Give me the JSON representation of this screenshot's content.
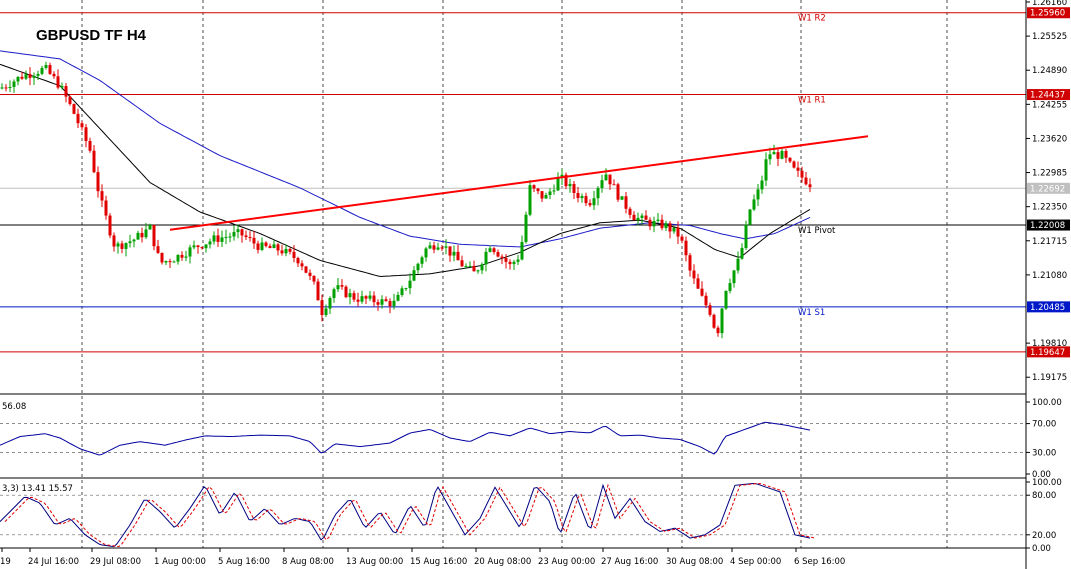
{
  "chart_data": {
    "type": "candlestick",
    "title": "GBPUSD  TF H4",
    "ylim": [
      1.189,
      1.2616
    ],
    "price_ticks": [
      "1.26160",
      "1.25525",
      "1.24890",
      "1.24255",
      "1.23620",
      "1.22985",
      "1.22350",
      "1.21715",
      "1.21080",
      "1.19810",
      "1.19175"
    ],
    "levels": [
      {
        "name": "W1 R2",
        "value": 1.2596,
        "label": "1.25960",
        "color": "#d00000"
      },
      {
        "name": "W1 R1",
        "value": 1.24437,
        "label": "1.24437",
        "color": "#d00000"
      },
      {
        "name": "W1 Pivot",
        "value": 1.22008,
        "label": "1.22008",
        "color": "#000000"
      },
      {
        "name": "W1 S1",
        "value": 1.20485,
        "label": "1.20485",
        "color": "#0018c8"
      },
      {
        "name": "",
        "value": 1.19647,
        "label": "1.19647",
        "color": "#d00000"
      }
    ],
    "current_price": {
      "value": 1.22692,
      "label": "1.22692"
    },
    "time_labels": [
      "19",
      "24 Jul 16:00",
      "29 Jul 08:00",
      "1 Aug 00:00",
      "5 Aug 16:00",
      "8 Aug 08:00",
      "13 Aug 00:00",
      "15 Aug 16:00",
      "20 Aug 08:00",
      "23 Aug 00:00",
      "27 Aug 16:00",
      "30 Aug 08:00",
      "4 Sep 00:00",
      "6 Sep 16:00"
    ],
    "trendline": {
      "from": [
        170,
        1.2192
      ],
      "to": [
        868,
        1.2366
      ],
      "color": "#ff0000"
    },
    "close_keypoints": [
      [
        0,
        1.2455
      ],
      [
        22,
        1.2478
      ],
      [
        45,
        1.2492
      ],
      [
        60,
        1.246
      ],
      [
        75,
        1.2405
      ],
      [
        90,
        1.234
      ],
      [
        100,
        1.225
      ],
      [
        115,
        1.216
      ],
      [
        135,
        1.2175
      ],
      [
        150,
        1.2195
      ],
      [
        160,
        1.213
      ],
      [
        175,
        1.214
      ],
      [
        195,
        1.216
      ],
      [
        215,
        1.2175
      ],
      [
        240,
        1.2185
      ],
      [
        260,
        1.216
      ],
      [
        280,
        1.2155
      ],
      [
        300,
        1.2135
      ],
      [
        315,
        1.2085
      ],
      [
        322,
        1.204
      ],
      [
        335,
        1.2085
      ],
      [
        355,
        1.2065
      ],
      [
        375,
        1.206
      ],
      [
        395,
        1.2055
      ],
      [
        410,
        1.21
      ],
      [
        425,
        1.2155
      ],
      [
        440,
        1.217
      ],
      [
        460,
        1.213
      ],
      [
        475,
        1.211
      ],
      [
        490,
        1.2165
      ],
      [
        510,
        1.2125
      ],
      [
        520,
        1.2145
      ],
      [
        530,
        1.227
      ],
      [
        545,
        1.225
      ],
      [
        560,
        1.229
      ],
      [
        575,
        1.226
      ],
      [
        590,
        1.2245
      ],
      [
        605,
        1.23
      ],
      [
        620,
        1.225
      ],
      [
        635,
        1.2215
      ],
      [
        650,
        1.2205
      ],
      [
        665,
        1.22
      ],
      [
        680,
        1.218
      ],
      [
        690,
        1.2115
      ],
      [
        700,
        1.207
      ],
      [
        710,
        1.204
      ],
      [
        717,
        1.1995
      ],
      [
        725,
        1.208
      ],
      [
        740,
        1.214
      ],
      [
        750,
        1.223
      ],
      [
        760,
        1.227
      ],
      [
        768,
        1.2335
      ],
      [
        782,
        1.233
      ],
      [
        795,
        1.23
      ],
      [
        812,
        1.2275
      ]
    ],
    "ma_black_keypoints": [
      [
        0,
        1.25
      ],
      [
        60,
        1.246
      ],
      [
        100,
        1.238
      ],
      [
        150,
        1.228
      ],
      [
        200,
        1.2225
      ],
      [
        260,
        1.2185
      ],
      [
        320,
        1.2135
      ],
      [
        380,
        1.2105
      ],
      [
        430,
        1.211
      ],
      [
        480,
        1.2125
      ],
      [
        520,
        1.215
      ],
      [
        560,
        1.2185
      ],
      [
        600,
        1.2205
      ],
      [
        640,
        1.221
      ],
      [
        680,
        1.2195
      ],
      [
        715,
        1.2155
      ],
      [
        740,
        1.214
      ],
      [
        770,
        1.2185
      ],
      [
        810,
        1.223
      ]
    ],
    "ma_blue_keypoints": [
      [
        0,
        1.2525
      ],
      [
        60,
        1.251
      ],
      [
        100,
        1.247
      ],
      [
        160,
        1.239
      ],
      [
        220,
        1.233
      ],
      [
        300,
        1.227
      ],
      [
        360,
        1.2215
      ],
      [
        410,
        1.218
      ],
      [
        460,
        1.2165
      ],
      [
        520,
        1.216
      ],
      [
        560,
        1.2175
      ],
      [
        600,
        1.2195
      ],
      [
        650,
        1.2205
      ],
      [
        690,
        1.22
      ],
      [
        720,
        1.2185
      ],
      [
        745,
        1.2175
      ],
      [
        775,
        1.2185
      ],
      [
        810,
        1.2215
      ]
    ],
    "rsi": {
      "label": "56.08",
      "ticks": [
        "100.00",
        "70.00",
        "30.00",
        "0.00"
      ],
      "ylim": [
        0,
        100
      ],
      "keypoints": [
        [
          0,
          40
        ],
        [
          20,
          52
        ],
        [
          45,
          56
        ],
        [
          60,
          50
        ],
        [
          80,
          35
        ],
        [
          100,
          26
        ],
        [
          120,
          40
        ],
        [
          140,
          45
        ],
        [
          165,
          40
        ],
        [
          185,
          47
        ],
        [
          205,
          53
        ],
        [
          230,
          52
        ],
        [
          260,
          54
        ],
        [
          290,
          53
        ],
        [
          310,
          45
        ],
        [
          322,
          28
        ],
        [
          335,
          42
        ],
        [
          360,
          38
        ],
        [
          390,
          43
        ],
        [
          410,
          57
        ],
        [
          430,
          62
        ],
        [
          450,
          50
        ],
        [
          470,
          45
        ],
        [
          490,
          58
        ],
        [
          510,
          53
        ],
        [
          530,
          64
        ],
        [
          550,
          56
        ],
        [
          570,
          59
        ],
        [
          590,
          57
        ],
        [
          605,
          67
        ],
        [
          620,
          53
        ],
        [
          640,
          54
        ],
        [
          660,
          50
        ],
        [
          680,
          48
        ],
        [
          700,
          38
        ],
        [
          715,
          27
        ],
        [
          725,
          52
        ],
        [
          745,
          62
        ],
        [
          765,
          72
        ],
        [
          785,
          68
        ],
        [
          810,
          61
        ]
      ]
    },
    "stoch": {
      "label": "3,3) 13.41 15.57",
      "ticks": [
        "100.00",
        "80.00",
        "20.00",
        "0.00"
      ],
      "ylim": [
        0,
        100
      ],
      "keypoints": [
        [
          0,
          40
        ],
        [
          25,
          78
        ],
        [
          40,
          68
        ],
        [
          55,
          35
        ],
        [
          70,
          45
        ],
        [
          85,
          20
        ],
        [
          100,
          5
        ],
        [
          115,
          2
        ],
        [
          130,
          35
        ],
        [
          145,
          75
        ],
        [
          160,
          55
        ],
        [
          175,
          30
        ],
        [
          190,
          60
        ],
        [
          205,
          95
        ],
        [
          220,
          50
        ],
        [
          235,
          85
        ],
        [
          250,
          40
        ],
        [
          265,
          60
        ],
        [
          280,
          35
        ],
        [
          295,
          45
        ],
        [
          310,
          40
        ],
        [
          322,
          10
        ],
        [
          335,
          50
        ],
        [
          350,
          75
        ],
        [
          365,
          30
        ],
        [
          380,
          55
        ],
        [
          395,
          20
        ],
        [
          410,
          65
        ],
        [
          425,
          30
        ],
        [
          437,
          95
        ],
        [
          450,
          60
        ],
        [
          465,
          20
        ],
        [
          480,
          45
        ],
        [
          495,
          92
        ],
        [
          510,
          55
        ],
        [
          520,
          30
        ],
        [
          535,
          95
        ],
        [
          550,
          70
        ],
        [
          560,
          20
        ],
        [
          575,
          85
        ],
        [
          590,
          25
        ],
        [
          603,
          95
        ],
        [
          615,
          45
        ],
        [
          630,
          75
        ],
        [
          645,
          40
        ],
        [
          660,
          25
        ],
        [
          675,
          30
        ],
        [
          690,
          15
        ],
        [
          705,
          20
        ],
        [
          720,
          35
        ],
        [
          735,
          95
        ],
        [
          755,
          98
        ],
        [
          780,
          85
        ],
        [
          795,
          20
        ],
        [
          810,
          15
        ]
      ]
    }
  }
}
